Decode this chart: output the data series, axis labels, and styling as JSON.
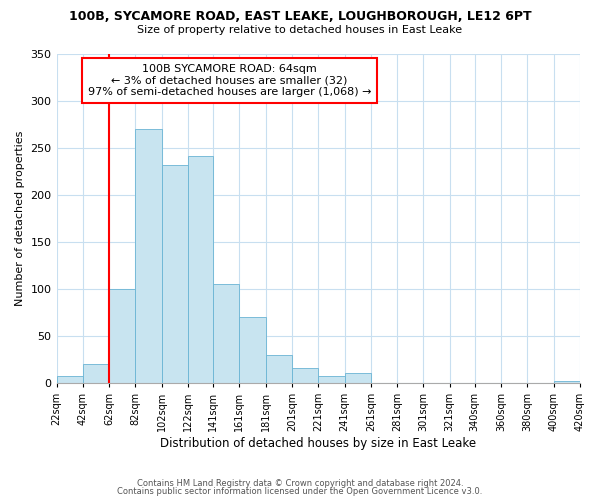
{
  "title": "100B, SYCAMORE ROAD, EAST LEAKE, LOUGHBOROUGH, LE12 6PT",
  "subtitle": "Size of property relative to detached houses in East Leake",
  "xlabel": "Distribution of detached houses by size in East Leake",
  "ylabel": "Number of detached properties",
  "bar_color": "#c8e4f0",
  "bar_edge_color": "#6ab4d4",
  "annotation_box_text": "100B SYCAMORE ROAD: 64sqm\n← 3% of detached houses are smaller (32)\n97% of semi-detached houses are larger (1,068) →",
  "red_line_x": 62,
  "footer1": "Contains HM Land Registry data © Crown copyright and database right 2024.",
  "footer2": "Contains public sector information licensed under the Open Government Licence v3.0.",
  "bin_edges": [
    22,
    42,
    62,
    82,
    102,
    122,
    141,
    161,
    181,
    201,
    221,
    241,
    261,
    281,
    301,
    321,
    340,
    360,
    380,
    400,
    420
  ],
  "bar_heights": [
    8,
    20,
    100,
    270,
    232,
    241,
    105,
    70,
    30,
    16,
    7,
    11,
    0,
    0,
    0,
    0,
    0,
    0,
    0,
    2
  ],
  "ylim": [
    0,
    350
  ],
  "yticks": [
    0,
    50,
    100,
    150,
    200,
    250,
    300,
    350
  ]
}
